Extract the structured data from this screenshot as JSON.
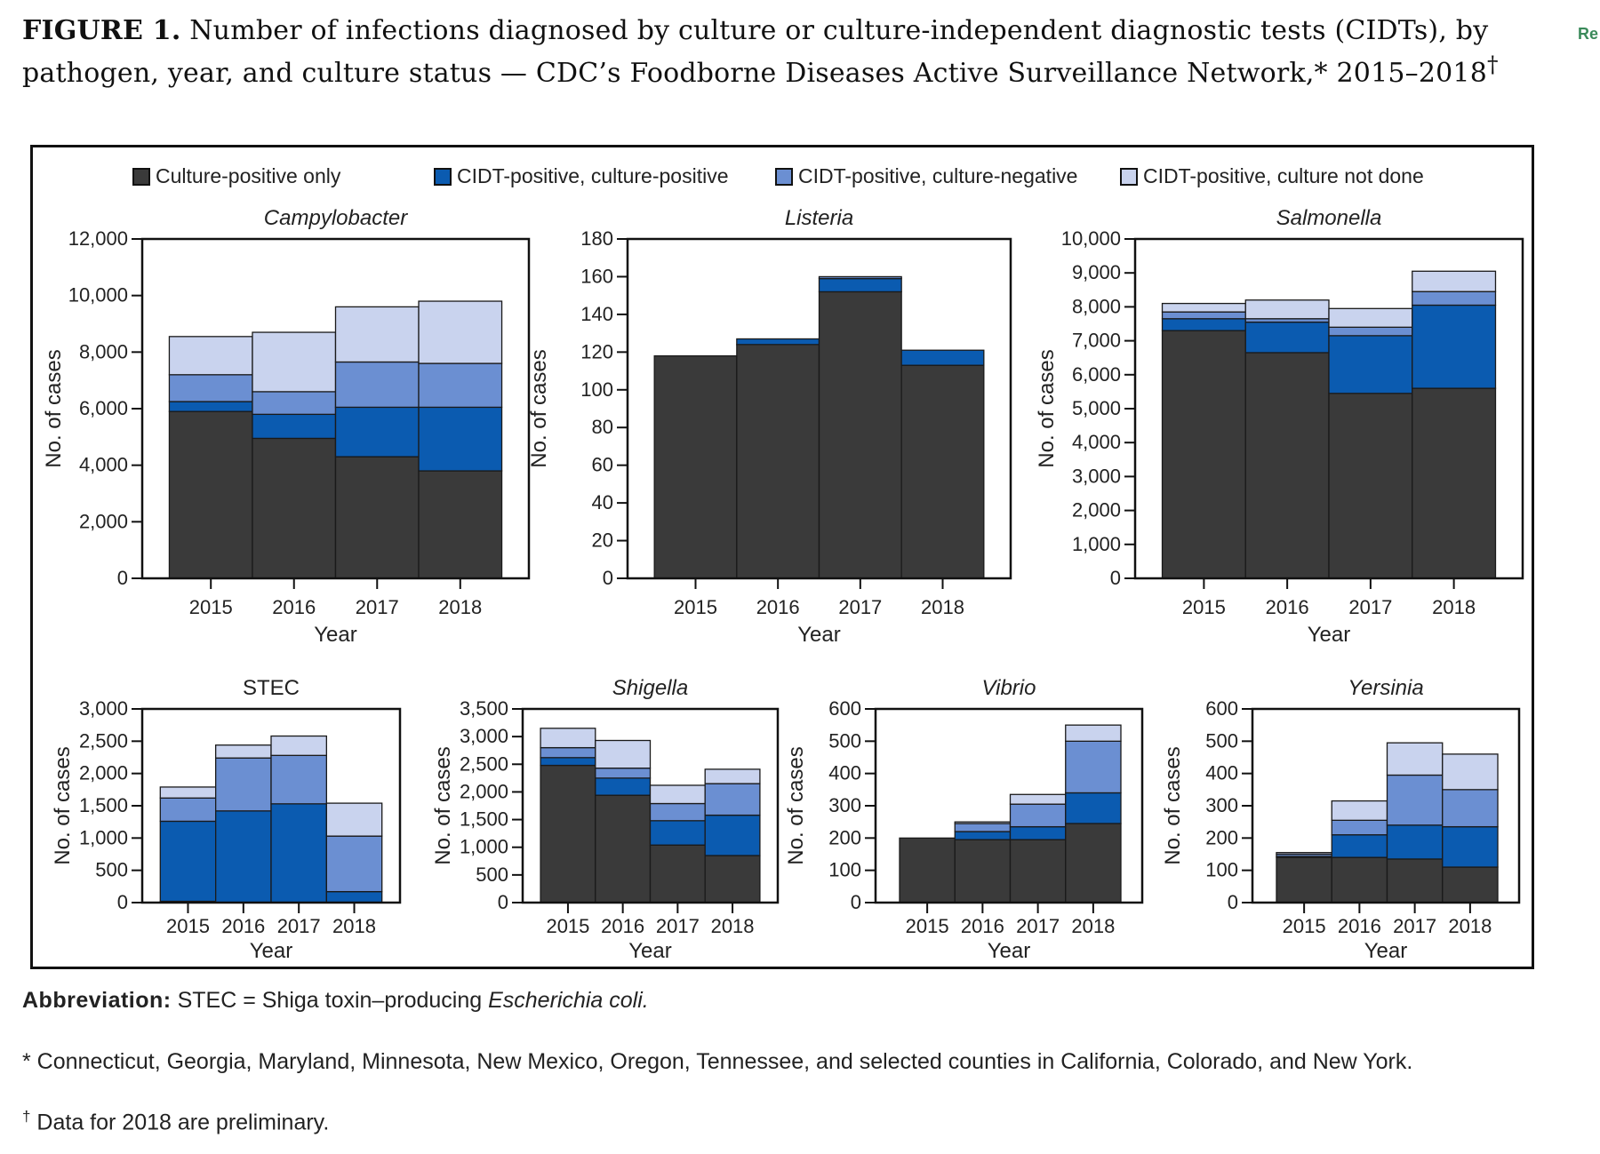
{
  "title": {
    "label": "FIGURE 1.",
    "text": "Number of infections diagnosed by culture or culture-independent diagnostic tests (CIDTs), by pathogen, year, and culture status — CDC’s Foodborne Diseases Active Surveillance Network,* 2015–2018",
    "dagger": "†"
  },
  "edge_text": "Re",
  "legend": [
    {
      "label": "Culture-positive only",
      "color": "#3a3a3a"
    },
    {
      "label": "CIDT-positive, culture-positive",
      "color": "#0b5bb0"
    },
    {
      "label": "CIDT-positive, culture-negative",
      "color": "#6b8fd2"
    },
    {
      "label": "CIDT-positive, culture not done",
      "color": "#c9d3ee"
    }
  ],
  "chart_data": [
    {
      "type": "bar",
      "stacked": true,
      "title": "Campylobacter",
      "italic": true,
      "xlabel": "Year",
      "ylabel": "No. of cases",
      "categories": [
        "2015",
        "2016",
        "2017",
        "2018"
      ],
      "ylim": [
        0,
        12000
      ],
      "yticks": [
        0,
        2000,
        4000,
        6000,
        8000,
        10000,
        12000
      ],
      "series": [
        {
          "name": "Culture-positive only",
          "values": [
            5900,
            4950,
            4300,
            3800
          ]
        },
        {
          "name": "CIDT-positive, culture-positive",
          "values": [
            350,
            850,
            1750,
            2250
          ]
        },
        {
          "name": "CIDT-positive, culture-negative",
          "values": [
            950,
            800,
            1600,
            1550
          ]
        },
        {
          "name": "CIDT-positive, culture not done",
          "values": [
            1350,
            2100,
            1950,
            2200
          ]
        }
      ]
    },
    {
      "type": "bar",
      "stacked": true,
      "title": "Listeria",
      "italic": true,
      "xlabel": "Year",
      "ylabel": "No. of cases",
      "categories": [
        "2015",
        "2016",
        "2017",
        "2018"
      ],
      "ylim": [
        0,
        180
      ],
      "yticks": [
        0,
        20,
        40,
        60,
        80,
        100,
        120,
        140,
        160,
        180
      ],
      "series": [
        {
          "name": "Culture-positive only",
          "values": [
            118,
            124,
            152,
            113
          ]
        },
        {
          "name": "CIDT-positive, culture-positive",
          "values": [
            0,
            3,
            7,
            8
          ]
        },
        {
          "name": "CIDT-positive, culture-negative",
          "values": [
            0,
            0,
            1,
            0
          ]
        },
        {
          "name": "CIDT-positive, culture not done",
          "values": [
            0,
            0,
            0,
            0
          ]
        }
      ]
    },
    {
      "type": "bar",
      "stacked": true,
      "title": "Salmonella",
      "italic": true,
      "xlabel": "Year",
      "ylabel": "No. of cases",
      "categories": [
        "2015",
        "2016",
        "2017",
        "2018"
      ],
      "ylim": [
        0,
        10000
      ],
      "yticks": [
        0,
        1000,
        2000,
        3000,
        4000,
        5000,
        6000,
        7000,
        8000,
        9000,
        10000
      ],
      "series": [
        {
          "name": "Culture-positive only",
          "values": [
            7300,
            6650,
            5450,
            5600
          ]
        },
        {
          "name": "CIDT-positive, culture-positive",
          "values": [
            350,
            900,
            1700,
            2450
          ]
        },
        {
          "name": "CIDT-positive, culture-negative",
          "values": [
            200,
            100,
            250,
            400
          ]
        },
        {
          "name": "CIDT-positive, culture not done",
          "values": [
            250,
            550,
            550,
            600
          ]
        }
      ]
    },
    {
      "type": "bar",
      "stacked": true,
      "title": "STEC",
      "italic": false,
      "xlabel": "Year",
      "ylabel": "No. of cases",
      "categories": [
        "2015",
        "2016",
        "2017",
        "2018"
      ],
      "ylim": [
        0,
        3000
      ],
      "yticks": [
        0,
        500,
        1000,
        1500,
        2000,
        2500,
        3000
      ],
      "series": [
        {
          "name": "Culture-positive only",
          "values": [
            20,
            0,
            0,
            0
          ]
        },
        {
          "name": "CIDT-positive, culture-positive",
          "values": [
            1240,
            1420,
            1530,
            170
          ]
        },
        {
          "name": "CIDT-positive, culture-negative",
          "values": [
            360,
            820,
            750,
            860
          ]
        },
        {
          "name": "CIDT-positive, culture not done",
          "values": [
            170,
            200,
            300,
            510
          ]
        }
      ]
    },
    {
      "type": "bar",
      "stacked": true,
      "title": "Shigella",
      "italic": true,
      "xlabel": "Year",
      "ylabel": "No. of cases",
      "categories": [
        "2015",
        "2016",
        "2017",
        "2018"
      ],
      "ylim": [
        0,
        3500
      ],
      "yticks": [
        0,
        500,
        1000,
        1500,
        2000,
        2500,
        3000,
        3500
      ],
      "series": [
        {
          "name": "Culture-positive only",
          "values": [
            2480,
            1940,
            1040,
            850
          ]
        },
        {
          "name": "CIDT-positive, culture-positive",
          "values": [
            140,
            310,
            440,
            730
          ]
        },
        {
          "name": "CIDT-positive, culture-negative",
          "values": [
            180,
            180,
            310,
            570
          ]
        },
        {
          "name": "CIDT-positive, culture not done",
          "values": [
            350,
            500,
            330,
            260
          ]
        }
      ]
    },
    {
      "type": "bar",
      "stacked": true,
      "title": "Vibrio",
      "italic": true,
      "xlabel": "Year",
      "ylabel": "No. of cases",
      "categories": [
        "2015",
        "2016",
        "2017",
        "2018"
      ],
      "ylim": [
        0,
        600
      ],
      "yticks": [
        0,
        100,
        200,
        300,
        400,
        500,
        600
      ],
      "series": [
        {
          "name": "Culture-positive only",
          "values": [
            200,
            195,
            195,
            245
          ]
        },
        {
          "name": "CIDT-positive, culture-positive",
          "values": [
            0,
            25,
            40,
            95
          ]
        },
        {
          "name": "CIDT-positive, culture-negative",
          "values": [
            0,
            25,
            70,
            160
          ]
        },
        {
          "name": "CIDT-positive, culture not done",
          "values": [
            0,
            5,
            30,
            50
          ]
        }
      ]
    },
    {
      "type": "bar",
      "stacked": true,
      "title": "Yersinia",
      "italic": true,
      "xlabel": "Year",
      "ylabel": "No. of cases",
      "categories": [
        "2015",
        "2016",
        "2017",
        "2018"
      ],
      "ylim": [
        0,
        600
      ],
      "yticks": [
        0,
        100,
        200,
        300,
        400,
        500,
        600
      ],
      "series": [
        {
          "name": "Culture-positive only",
          "values": [
            140,
            140,
            135,
            110
          ]
        },
        {
          "name": "CIDT-positive, culture-positive",
          "values": [
            3,
            70,
            105,
            125
          ]
        },
        {
          "name": "CIDT-positive, culture-negative",
          "values": [
            7,
            45,
            155,
            115
          ]
        },
        {
          "name": "CIDT-positive, culture not done",
          "values": [
            5,
            60,
            100,
            110
          ]
        }
      ]
    }
  ],
  "footnotes": {
    "abbrev_label": "Abbreviation:",
    "abbrev_text": " STEC = Shiga toxin–producing ",
    "abbrev_italic": "Escherichia coli.",
    "star": "* Connecticut, Georgia, Maryland, Minnesota, New Mexico, Oregon, Tennessee, and selected counties in California, Colorado, and New York.",
    "dagger_mark": "†",
    "dagger": " Data for 2018 are preliminary."
  }
}
